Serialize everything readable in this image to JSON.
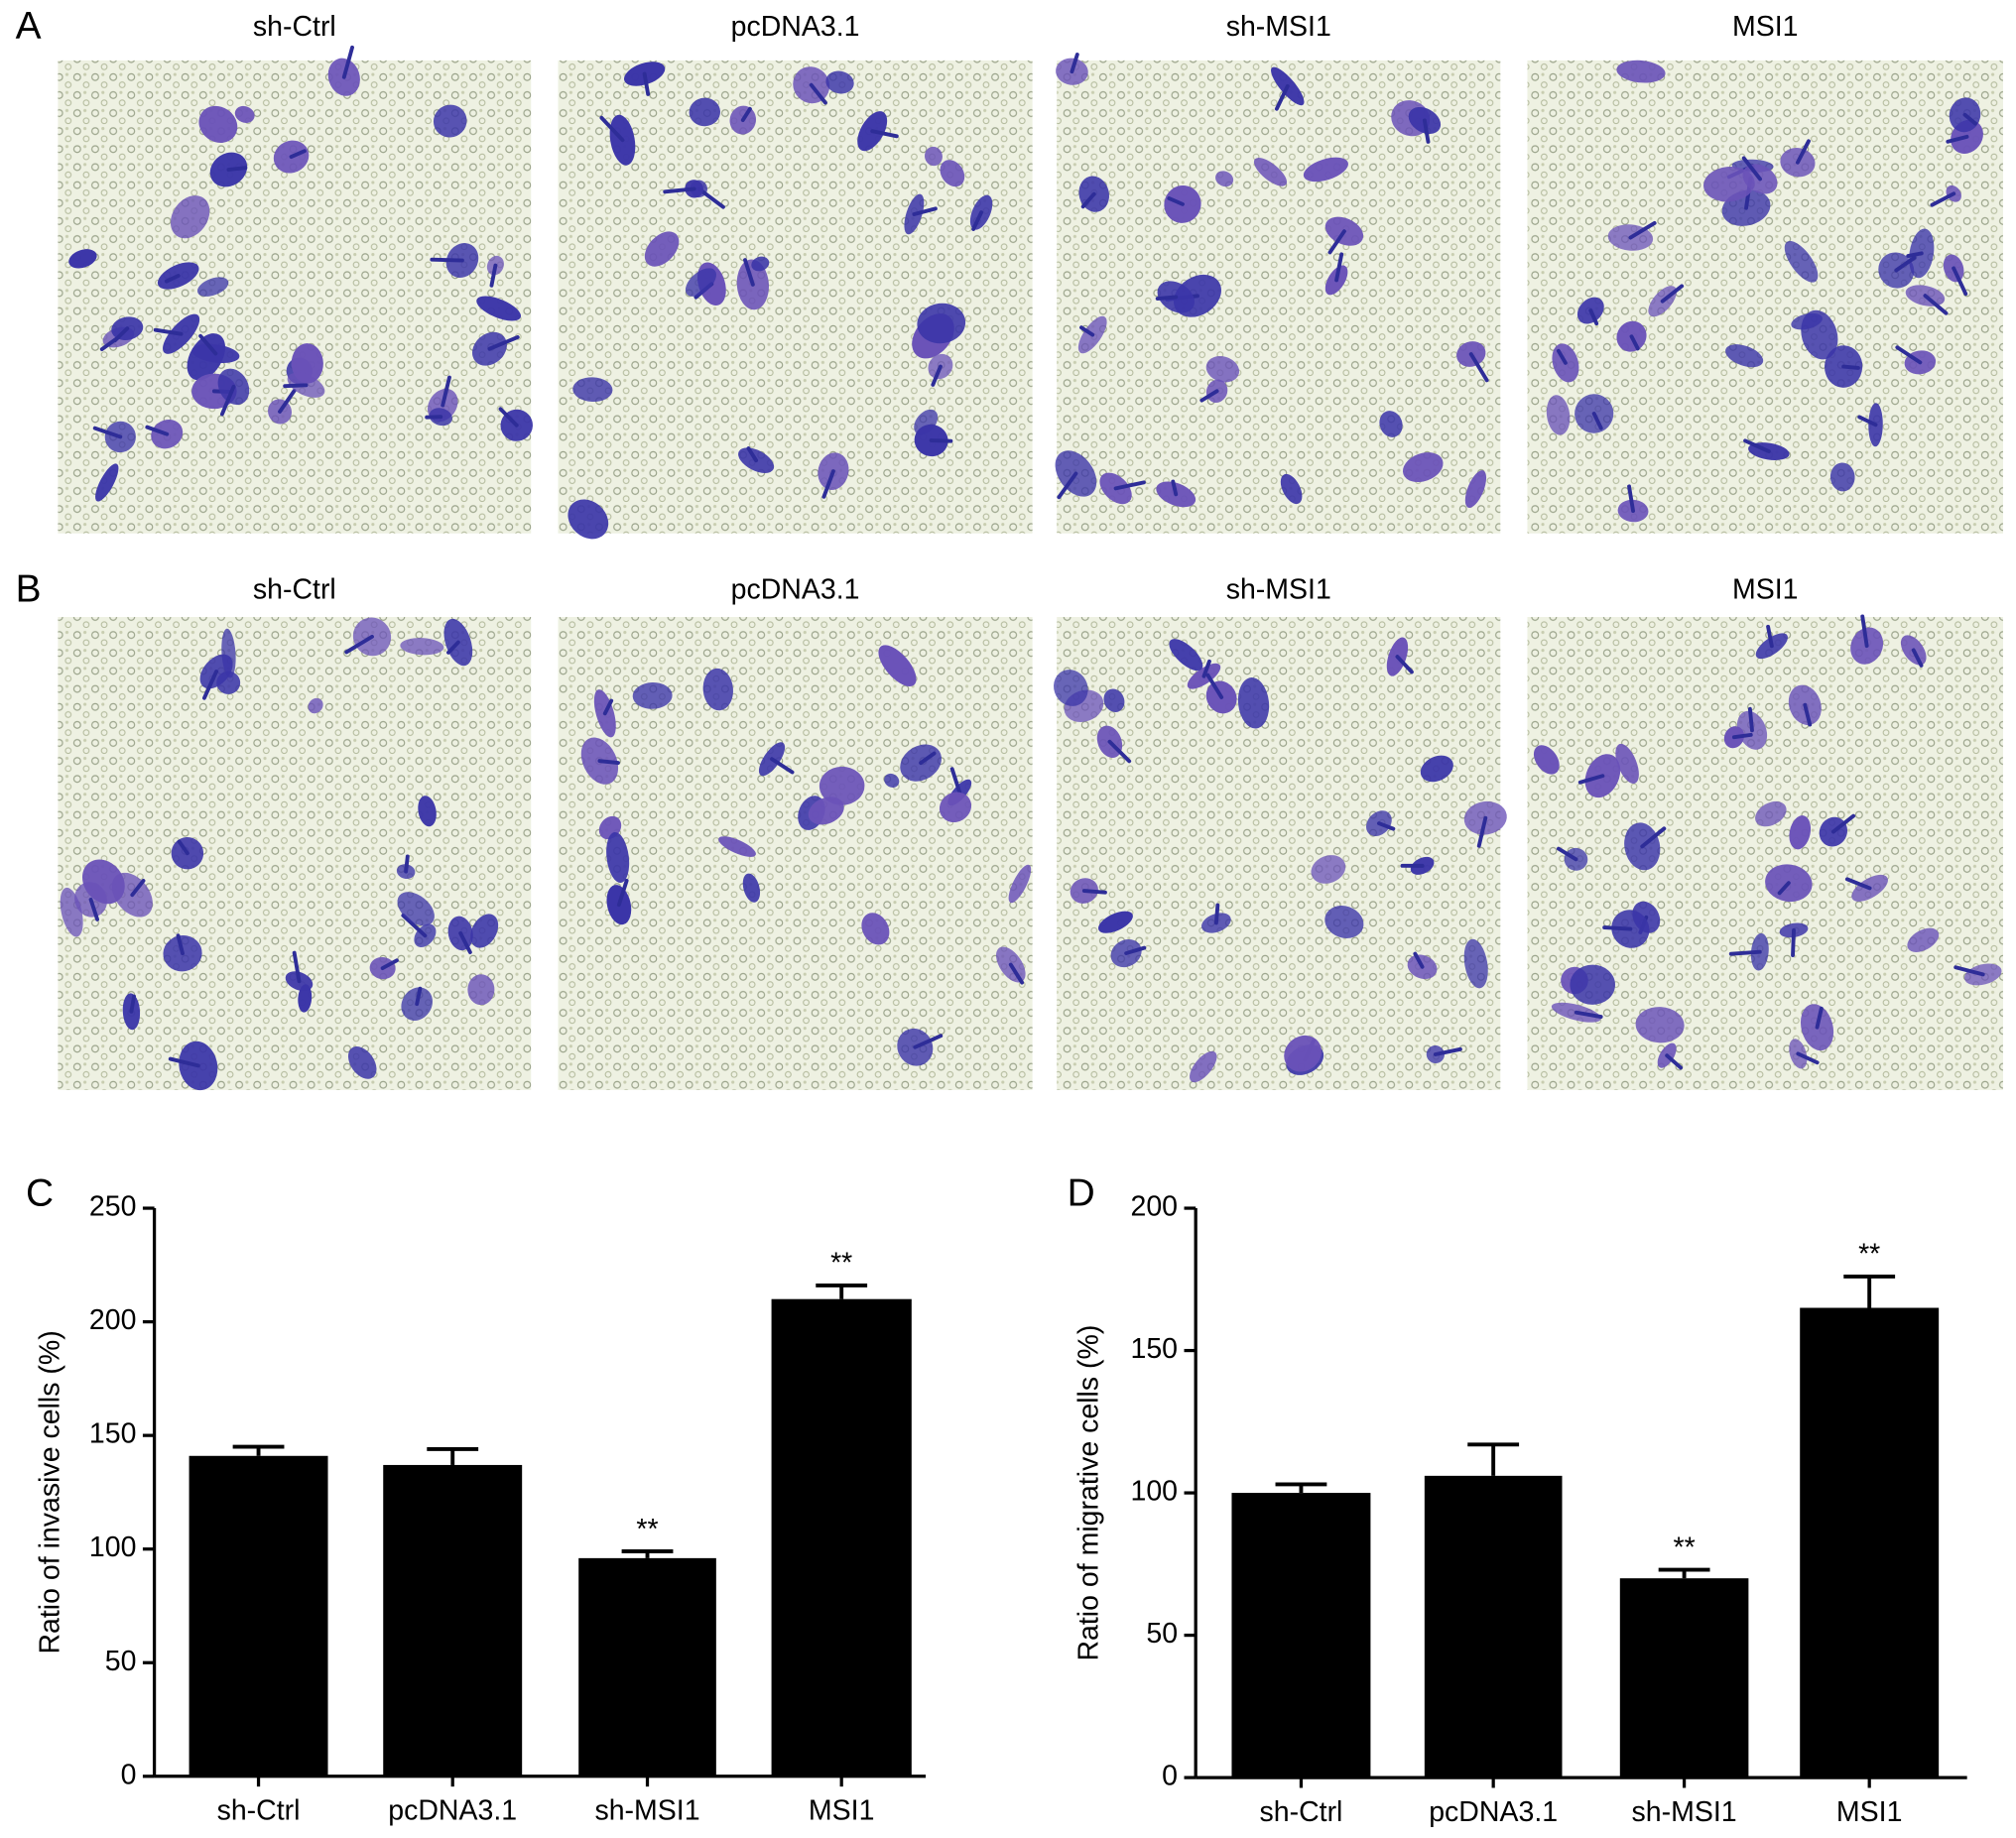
{
  "micrograph_rows": [
    {
      "label": "A",
      "columns": [
        "sh-Ctrl",
        "pcDNA3.1",
        "sh-MSI1",
        "MSI1"
      ]
    },
    {
      "label": "B",
      "columns": [
        "sh-Ctrl",
        "pcDNA3.1",
        "sh-MSI1",
        "MSI1"
      ]
    }
  ],
  "chart_data": [
    {
      "type": "bar",
      "panel_label": "C",
      "y_label": "Ratio of invasive cells (%)",
      "categories": [
        "sh-Ctrl",
        "pcDNA3.1",
        "sh-MSI1",
        "MSI1"
      ],
      "values": [
        141,
        137,
        96,
        210
      ],
      "errors": [
        4,
        7,
        3,
        6
      ],
      "significance": [
        null,
        null,
        "**",
        "**"
      ],
      "color": "#000000",
      "ylim": [
        0,
        250
      ],
      "yticks": [
        0,
        50,
        100,
        150,
        200,
        250
      ]
    },
    {
      "type": "bar",
      "panel_label": "D",
      "y_label": "Ratio of migrative cells (%)",
      "categories": [
        "sh-Ctrl",
        "pcDNA3.1",
        "sh-MSI1",
        "MSI1"
      ],
      "values": [
        100,
        106,
        70,
        165
      ],
      "errors": [
        3,
        11,
        3,
        11
      ],
      "significance": [
        null,
        null,
        "**",
        "**"
      ],
      "color": "#000000",
      "ylim": [
        0,
        200
      ],
      "yticks": [
        0,
        50,
        100,
        150,
        200
      ]
    }
  ]
}
